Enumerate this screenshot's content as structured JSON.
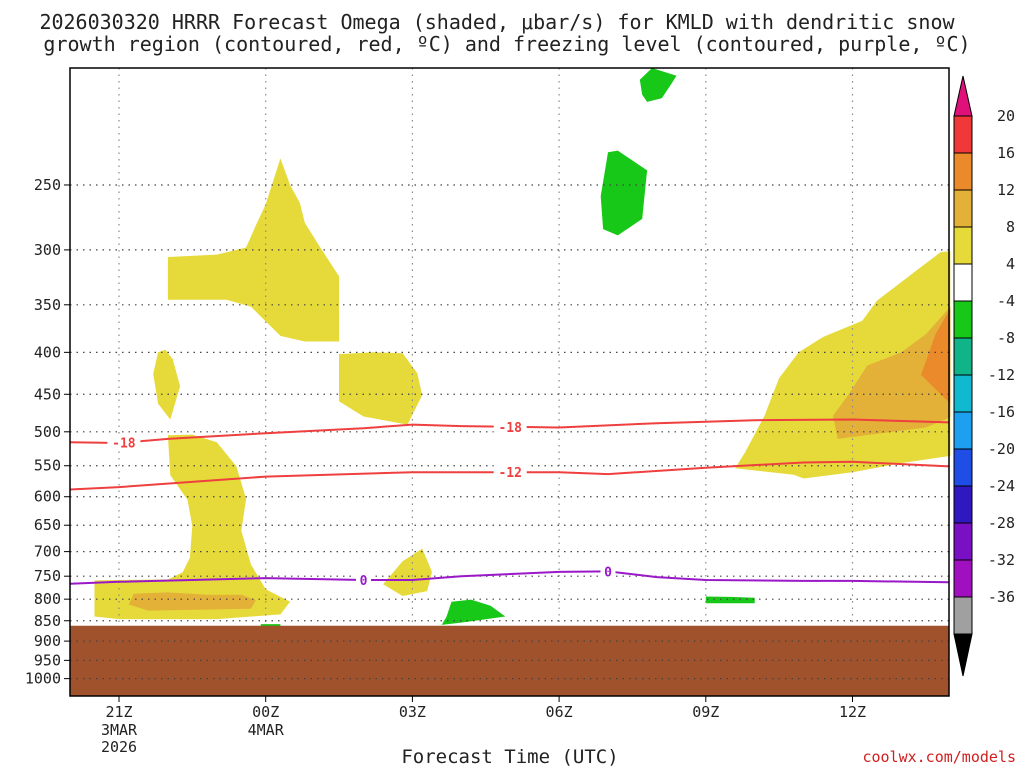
{
  "chart_data": {
    "type": "time-height cross-section (filled contour)",
    "title_line1": "2026030320 HRRR Forecast Omega (shaded, μbar/s) for KMLD with dendritic snow",
    "title_line2": "growth region (contoured, red, ºC) and freezing level (contoured, purple, ºC)",
    "xlabel": "Forecast Time (UTC)",
    "credit": "coolwx.com/models",
    "x_ticks": [
      {
        "hour": 0,
        "label": "21Z",
        "sub": [
          "3MAR",
          "2026"
        ]
      },
      {
        "hour": 3,
        "label": "00Z",
        "sub": [
          "4MAR"
        ]
      },
      {
        "hour": 6,
        "label": "03Z",
        "sub": []
      },
      {
        "hour": 9,
        "label": "06Z",
        "sub": []
      },
      {
        "hour": 12,
        "label": "09Z",
        "sub": []
      },
      {
        "hour": 15,
        "label": "12Z",
        "sub": []
      }
    ],
    "y_ticks_hpa": [
      250,
      300,
      350,
      400,
      450,
      500,
      550,
      600,
      650,
      700,
      750,
      800,
      850,
      900,
      950,
      1000
    ],
    "xlim_hours": [
      -1,
      17
    ],
    "ylim_hpa": [
      180,
      1050
    ],
    "ground_top_hpa": 862,
    "ground_color": "#a0522d",
    "colorbar": {
      "units": "μbar/s",
      "ticks": [
        "20",
        "16",
        "12",
        "8",
        "4",
        "-4",
        "-8",
        "-12",
        "-16",
        "-20",
        "-24",
        "-28",
        "-32",
        "-36"
      ],
      "bins": [
        {
          "color": "#f03838"
        },
        {
          "color": "#ea8a2a"
        },
        {
          "color": "#e3b038"
        },
        {
          "color": "#e6da3a"
        },
        {
          "color": "#ffffff"
        },
        {
          "color": "#18c818"
        },
        {
          "color": "#10b488"
        },
        {
          "color": "#10b8d0"
        },
        {
          "color": "#1ea0f0"
        },
        {
          "color": "#1e4ee6"
        },
        {
          "color": "#3018c0"
        },
        {
          "color": "#7a10c4"
        },
        {
          "color": "#a010c0"
        },
        {
          "color": "#a0a0a0"
        }
      ],
      "top_arrow_color": "#e0107a",
      "bottom_arrow_color": "#000000"
    },
    "contours": [
      {
        "name": "temp-minus18",
        "value": -18,
        "color": "#ef3f3f",
        "label": "-18",
        "points": [
          [
            -1,
            515
          ],
          [
            0,
            516
          ],
          [
            1,
            510
          ],
          [
            3,
            502
          ],
          [
            5,
            495
          ],
          [
            6,
            490
          ],
          [
            7,
            492
          ],
          [
            9,
            494
          ],
          [
            11,
            488
          ],
          [
            13,
            484
          ],
          [
            15,
            483
          ],
          [
            17,
            487
          ]
        ],
        "label_hours": [
          0.1,
          8.0
        ]
      },
      {
        "name": "temp-minus12",
        "value": -12,
        "color": "#ef3f3f",
        "label": "-12",
        "points": [
          [
            -1,
            588
          ],
          [
            0,
            584
          ],
          [
            3,
            567
          ],
          [
            6,
            560
          ],
          [
            9,
            560
          ],
          [
            10,
            563
          ],
          [
            12,
            553
          ],
          [
            14,
            545
          ],
          [
            15,
            544
          ],
          [
            17,
            551
          ]
        ],
        "label_hours": [
          8.0
        ]
      },
      {
        "name": "freezing-level-0C",
        "value": 0,
        "color": "#9a18c8",
        "label": "0",
        "points": [
          [
            -1,
            766
          ],
          [
            0,
            762
          ],
          [
            3,
            754
          ],
          [
            5,
            758
          ],
          [
            6,
            758
          ],
          [
            7,
            750
          ],
          [
            9,
            741
          ],
          [
            10,
            740
          ],
          [
            11,
            752
          ],
          [
            12,
            758
          ],
          [
            14,
            760
          ],
          [
            15,
            760
          ],
          [
            17,
            763
          ]
        ],
        "label_hours": [
          5.0,
          10.0
        ]
      }
    ],
    "omega_regions": [
      {
        "name": "region-pos4-upper-left",
        "level": "4",
        "color": "#e6da3a",
        "points": [
          [
            1,
            306
          ],
          [
            2,
            304
          ],
          [
            2.2,
            302
          ],
          [
            2.6,
            298
          ],
          [
            2.8,
            280
          ],
          [
            3.0,
            264
          ],
          [
            3.3,
            232
          ],
          [
            3.5,
            250
          ],
          [
            3.7,
            263
          ],
          [
            3.8,
            278
          ],
          [
            4.1,
            297
          ],
          [
            4.5,
            323
          ],
          [
            4.5,
            388
          ],
          [
            3.8,
            388
          ],
          [
            3.3,
            382
          ],
          [
            2.7,
            352
          ],
          [
            2.2,
            345
          ],
          [
            1,
            345
          ]
        ]
      },
      {
        "name": "region-pos4-mid-right",
        "level": "4",
        "color": "#e6da3a",
        "points": [
          [
            4.5,
            412
          ],
          [
            4.5,
            435
          ],
          [
            4.5,
            459
          ],
          [
            5.0,
            479
          ],
          [
            5.9,
            490
          ],
          [
            6.2,
            451
          ],
          [
            6.1,
            424
          ],
          [
            5.8,
            401
          ],
          [
            5.2,
            400
          ],
          [
            4.5,
            402
          ]
        ]
      },
      {
        "name": "region-pos4-thin-left",
        "level": "4",
        "color": "#e6da3a",
        "points": [
          [
            0.8,
            400
          ],
          [
            0.7,
            425
          ],
          [
            0.8,
            462
          ],
          [
            1.05,
            483
          ],
          [
            1.25,
            440
          ],
          [
            1.1,
            408
          ],
          [
            0.95,
            397
          ]
        ]
      },
      {
        "name": "region-pos4-lower-column",
        "level": "4",
        "color": "#e6da3a",
        "points": [
          [
            -0.5,
            759
          ],
          [
            -0.5,
            840
          ],
          [
            0,
            846
          ],
          [
            2,
            846
          ],
          [
            3.3,
            835
          ],
          [
            3.5,
            806
          ],
          [
            3.0,
            778
          ],
          [
            2.7,
            726
          ],
          [
            2.5,
            660
          ],
          [
            2.6,
            604
          ],
          [
            2.4,
            551
          ],
          [
            2.0,
            515
          ],
          [
            1.5,
            504
          ],
          [
            1.0,
            505
          ],
          [
            1.05,
            565
          ],
          [
            1.4,
            605
          ],
          [
            1.5,
            652
          ],
          [
            1.45,
            712
          ],
          [
            1.3,
            742
          ],
          [
            1.0,
            757
          ],
          [
            0,
            758
          ]
        ]
      },
      {
        "name": "region-pos4-small-blob",
        "level": "4",
        "color": "#e6da3a",
        "points": [
          [
            5.4,
            767
          ],
          [
            5.8,
            793
          ],
          [
            6.3,
            782
          ],
          [
            6.4,
            741
          ],
          [
            6.2,
            694
          ],
          [
            5.8,
            719
          ]
        ]
      },
      {
        "name": "region-pos4-right-plume",
        "level": "4",
        "color": "#e6da3a",
        "points": [
          [
            13.8,
            564
          ],
          [
            14,
            570
          ],
          [
            15,
            560
          ],
          [
            16,
            546
          ],
          [
            17,
            535
          ],
          [
            17,
            301
          ],
          [
            16.8,
            302
          ],
          [
            16.3,
            318
          ],
          [
            15.5,
            346
          ],
          [
            15.2,
            366
          ],
          [
            14.4,
            383
          ],
          [
            13.9,
            400
          ],
          [
            13.5,
            430
          ],
          [
            13.2,
            478
          ],
          [
            12.8,
            530
          ],
          [
            12.6,
            554
          ]
        ]
      },
      {
        "name": "region-pos8-lower-left",
        "level": "8",
        "color": "#e3b038",
        "points": [
          [
            0.3,
            788
          ],
          [
            0.2,
            812
          ],
          [
            0.6,
            826
          ],
          [
            2.7,
            822
          ],
          [
            2.8,
            802
          ],
          [
            2.5,
            790
          ],
          [
            1.8,
            790
          ],
          [
            1.0,
            785
          ]
        ]
      },
      {
        "name": "region-pos8-right-plume",
        "level": "8",
        "color": "#e3b038",
        "points": [
          [
            14.7,
            510
          ],
          [
            16.5,
            494
          ],
          [
            17,
            480
          ],
          [
            17,
            352
          ],
          [
            16.5,
            380
          ],
          [
            16,
            400
          ],
          [
            15.3,
            415
          ],
          [
            14.9,
            452
          ],
          [
            14.6,
            478
          ]
        ]
      },
      {
        "name": "region-pos12-right-plume",
        "level": "12",
        "color": "#ea8a2a",
        "points": [
          [
            16.4,
            426
          ],
          [
            17,
            462
          ],
          [
            17,
            354
          ],
          [
            16.7,
            380
          ]
        ]
      },
      {
        "name": "region-neg4-top-dot",
        "level": "-4",
        "color": "#18c818",
        "points": [
          [
            10.8,
            198
          ],
          [
            11.1,
            196
          ],
          [
            11.3,
            188
          ],
          [
            11.4,
            184
          ],
          [
            10.9,
            180
          ],
          [
            10.65,
            186
          ],
          [
            10.7,
            194
          ]
        ]
      },
      {
        "name": "region-neg4-upper-blob",
        "level": "-4",
        "color": "#18c818",
        "points": [
          [
            10.0,
            228
          ],
          [
            9.85,
            258
          ],
          [
            9.9,
            283
          ],
          [
            10.2,
            288
          ],
          [
            10.7,
            275
          ],
          [
            10.8,
            240
          ],
          [
            10.2,
            227
          ]
        ]
      },
      {
        "name": "region-neg4-bottom-blob",
        "level": "-4",
        "color": "#18c818",
        "points": [
          [
            6.8,
            806
          ],
          [
            7.2,
            801
          ],
          [
            7.6,
            815
          ],
          [
            7.9,
            840
          ],
          [
            7.1,
            853
          ],
          [
            6.8,
            857
          ],
          [
            6.6,
            860
          ],
          [
            6.7,
            840
          ]
        ]
      },
      {
        "name": "region-neg4-small-right",
        "level": "-4",
        "color": "#18c818",
        "points": [
          [
            12.0,
            794
          ],
          [
            12.5,
            795
          ],
          [
            13.0,
            797
          ],
          [
            13.0,
            809
          ],
          [
            12.0,
            809
          ]
        ]
      },
      {
        "name": "region-neg4-ground-sliver",
        "level": "-4",
        "color": "#18c818",
        "points": [
          [
            2.9,
            858
          ],
          [
            3.3,
            858
          ],
          [
            3.3,
            863
          ],
          [
            2.9,
            863
          ]
        ]
      }
    ]
  }
}
